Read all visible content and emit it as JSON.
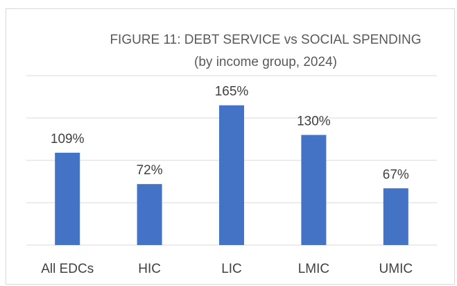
{
  "chart_data": {
    "type": "bar",
    "title": "FIGURE 11: DEBT SERVICE vs SOCIAL SPENDING",
    "subtitle": "(by income group, 2024)",
    "categories": [
      "All EDCs",
      "HIC",
      "LIC",
      "LMIC",
      "UMIC"
    ],
    "values": [
      109,
      72,
      165,
      130,
      67
    ],
    "data_labels": [
      "109%",
      "72%",
      "165%",
      "130%",
      "67%"
    ],
    "unit": "%",
    "xlabel": "",
    "ylabel": "",
    "ylim": [
      0,
      200
    ],
    "gridlines": [
      0,
      50,
      100,
      150,
      200
    ],
    "grid": true,
    "legend": "none",
    "colors": {
      "bar": "#4472c4",
      "grid": "#d9d9d9",
      "title": "#595959",
      "label": "#404040",
      "border": "#d9d9d9"
    }
  }
}
